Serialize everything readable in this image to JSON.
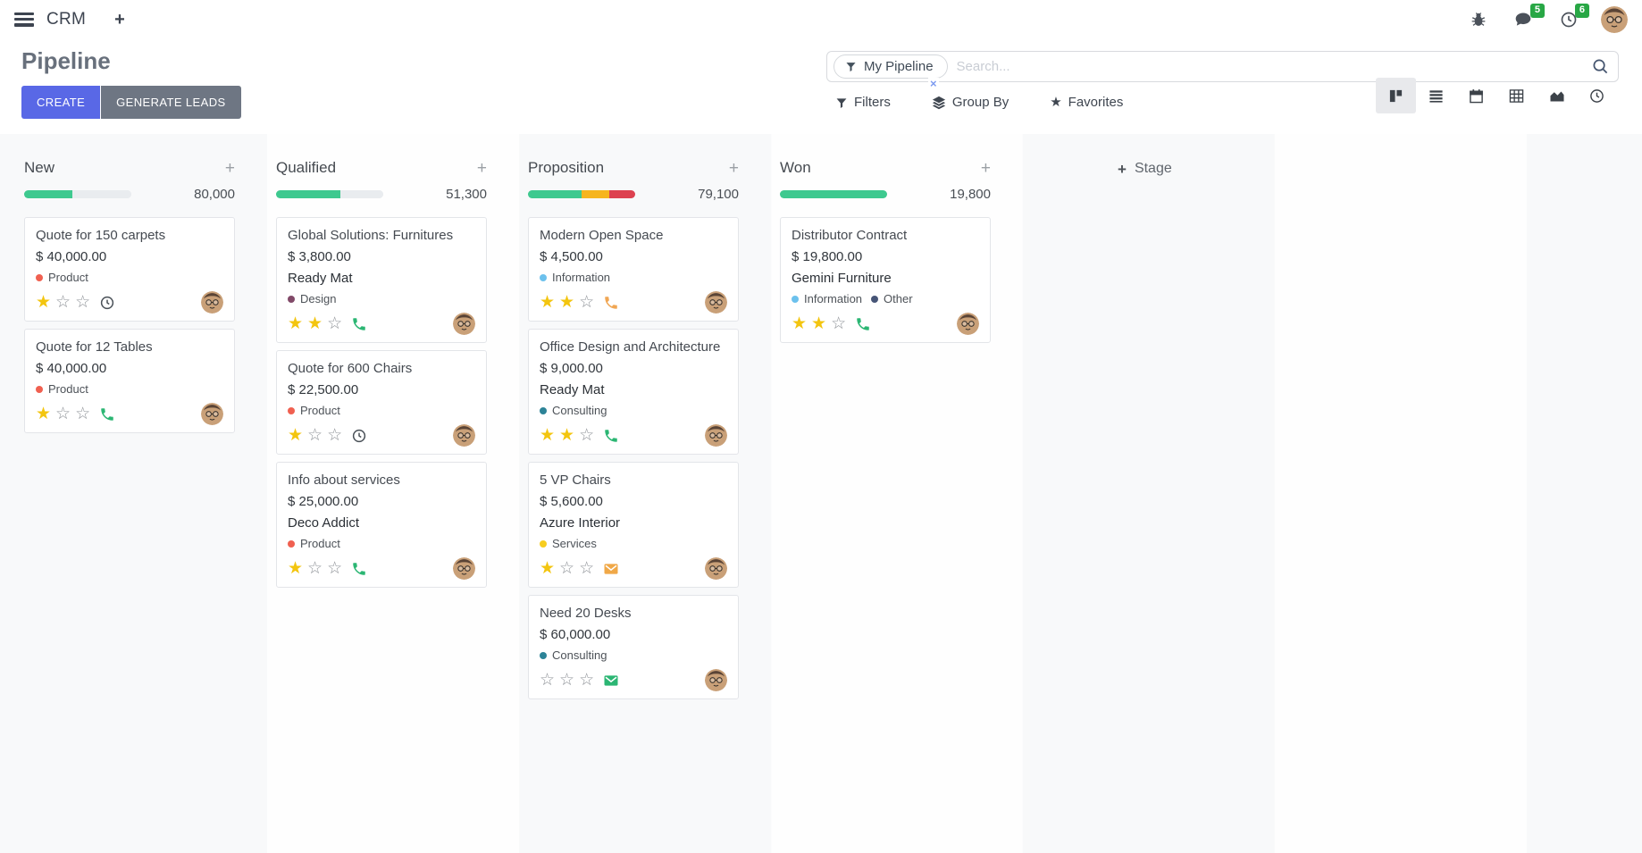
{
  "navbar": {
    "app_name": "CRM",
    "message_count": "5",
    "activity_count": "6"
  },
  "control_panel": {
    "title": "Pipeline",
    "create_label": "CREATE",
    "generate_leads_label": "GENERATE LEADS",
    "search": {
      "facet_label": "My Pipeline",
      "placeholder": "Search...",
      "remove_facet_symbol": "×"
    },
    "filters_label": "Filters",
    "group_by_label": "Group By",
    "favorites_label": "Favorites"
  },
  "board": {
    "add_stage_label": "Stage",
    "add_record_symbol": "+",
    "progress_colors": {
      "green": "#3ec98f",
      "orange": "#f6b51e",
      "red": "#dd4250",
      "muted": "#e9ecef"
    },
    "columns": [
      {
        "name": "New",
        "amount": "80,000",
        "progress": [
          {
            "color": "green",
            "pct": 45
          },
          {
            "color": "muted",
            "pct": 55
          }
        ],
        "cards": [
          {
            "title": "Quote for 150 carpets",
            "amount": "$ 40,000.00",
            "partner": null,
            "tags": [
              {
                "label": "Product",
                "color": "#F06050"
              }
            ],
            "stars": 1,
            "activity": {
              "type": "clock",
              "color": "#495057"
            }
          },
          {
            "title": "Quote for 12 Tables",
            "amount": "$ 40,000.00",
            "partner": null,
            "tags": [
              {
                "label": "Product",
                "color": "#F06050"
              }
            ],
            "stars": 1,
            "activity": {
              "type": "phone",
              "color": "#2bb673"
            }
          }
        ]
      },
      {
        "name": "Qualified",
        "amount": "51,300",
        "progress": [
          {
            "color": "green",
            "pct": 60
          },
          {
            "color": "muted",
            "pct": 40
          }
        ],
        "cards": [
          {
            "title": "Global Solutions: Furnitures",
            "amount": "$ 3,800.00",
            "partner": "Ready Mat",
            "tags": [
              {
                "label": "Design",
                "color": "#814968"
              }
            ],
            "stars": 2,
            "activity": {
              "type": "phone",
              "color": "#2bb673"
            }
          },
          {
            "title": "Quote for 600 Chairs",
            "amount": "$ 22,500.00",
            "partner": null,
            "tags": [
              {
                "label": "Product",
                "color": "#F06050"
              }
            ],
            "stars": 1,
            "activity": {
              "type": "clock",
              "color": "#495057"
            }
          },
          {
            "title": "Info about services",
            "amount": "$ 25,000.00",
            "partner": "Deco Addict",
            "tags": [
              {
                "label": "Product",
                "color": "#F06050"
              }
            ],
            "stars": 1,
            "activity": {
              "type": "phone",
              "color": "#2bb673"
            }
          }
        ]
      },
      {
        "name": "Proposition",
        "amount": "79,100",
        "progress": [
          {
            "color": "green",
            "pct": 50
          },
          {
            "color": "orange",
            "pct": 26
          },
          {
            "color": "red",
            "pct": 24
          }
        ],
        "cards": [
          {
            "title": "Modern Open Space",
            "amount": "$ 4,500.00",
            "partner": null,
            "tags": [
              {
                "label": "Information",
                "color": "#6CC1ED"
              }
            ],
            "stars": 2,
            "activity": {
              "type": "phone",
              "color": "#f0a653"
            }
          },
          {
            "title": "Office Design and Architecture",
            "amount": "$ 9,000.00",
            "partner": "Ready Mat",
            "tags": [
              {
                "label": "Consulting",
                "color": "#2C8397"
              }
            ],
            "stars": 2,
            "activity": {
              "type": "phone",
              "color": "#2bb673"
            }
          },
          {
            "title": "5 VP Chairs",
            "amount": "$ 5,600.00",
            "partner": "Azure Interior",
            "tags": [
              {
                "label": "Services",
                "color": "#F7CD1F"
              }
            ],
            "stars": 1,
            "activity": {
              "type": "envelope",
              "color": "#f0a847"
            }
          },
          {
            "title": "Need 20 Desks",
            "amount": "$ 60,000.00",
            "partner": null,
            "tags": [
              {
                "label": "Consulting",
                "color": "#2C8397"
              }
            ],
            "stars": 0,
            "activity": {
              "type": "envelope",
              "color": "#2bb673"
            }
          }
        ]
      },
      {
        "name": "Won",
        "amount": "19,800",
        "progress": [
          {
            "color": "green",
            "pct": 100
          }
        ],
        "cards": [
          {
            "title": "Distributor Contract",
            "amount": "$ 19,800.00",
            "partner": "Gemini Furniture",
            "tags": [
              {
                "label": "Information",
                "color": "#6CC1ED"
              },
              {
                "label": "Other",
                "color": "#475577"
              }
            ],
            "stars": 2,
            "activity": {
              "type": "phone",
              "color": "#2bb673"
            }
          }
        ]
      }
    ]
  }
}
